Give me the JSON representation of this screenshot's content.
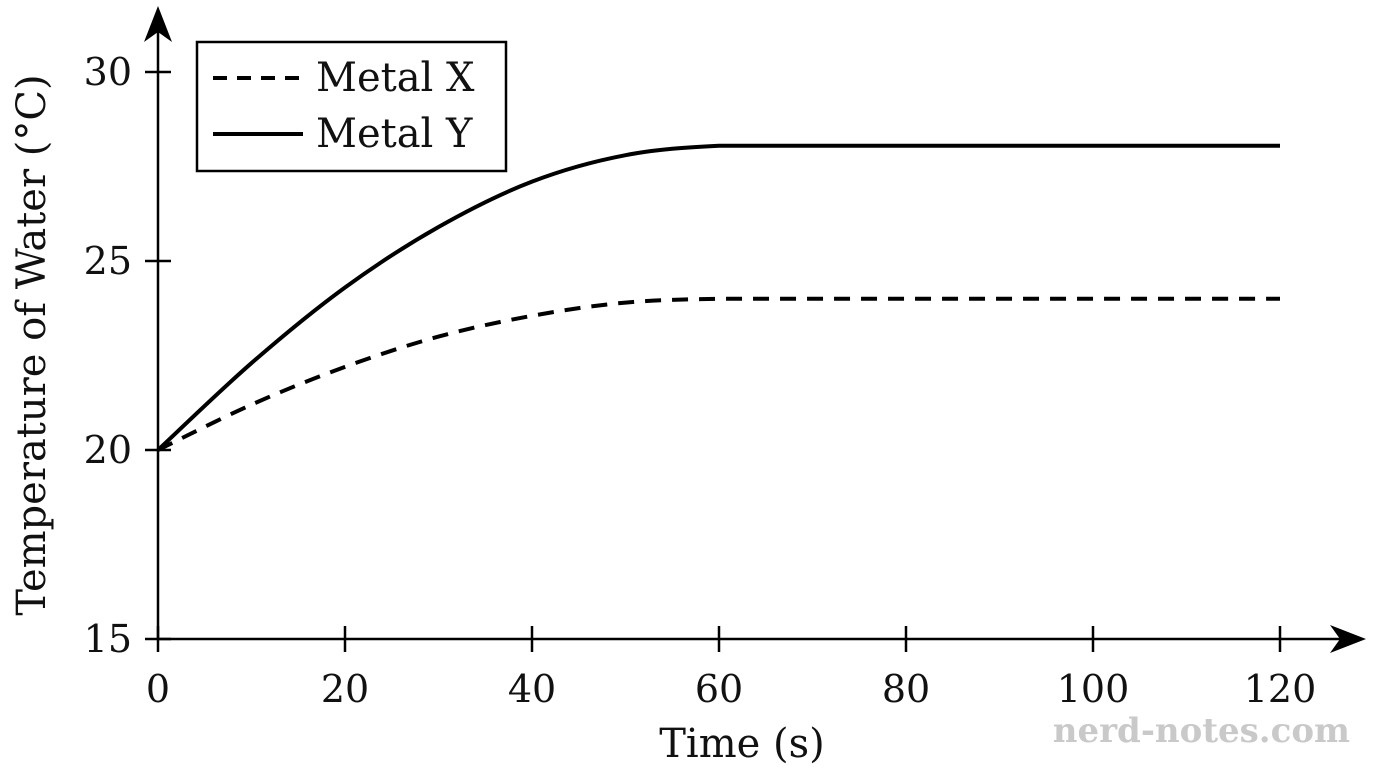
{
  "chart_data": {
    "type": "line",
    "xlabel": "Time (s)",
    "ylabel": "Temperature of Water (°C)",
    "xlim": [
      0,
      120
    ],
    "ylim": [
      15,
      30
    ],
    "xticks": [
      0,
      20,
      40,
      60,
      80,
      100,
      120
    ],
    "yticks": [
      15,
      20,
      25,
      30
    ],
    "grid": false,
    "legend_position": "top-left",
    "series": [
      {
        "name": "Metal X",
        "style": "dashed",
        "color": "#000000",
        "x": [
          0,
          10,
          20,
          30,
          40,
          50,
          60,
          70,
          80,
          90,
          100,
          110,
          120
        ],
        "y": [
          20,
          21.2,
          22.2,
          23.0,
          23.55,
          23.9,
          24.0,
          24.0,
          24.0,
          24.0,
          24.0,
          24.0,
          24.0
        ]
      },
      {
        "name": "Metal Y",
        "style": "solid",
        "color": "#000000",
        "x": [
          0,
          10,
          20,
          30,
          40,
          50,
          60,
          70,
          80,
          90,
          100,
          110,
          120
        ],
        "y": [
          20,
          22.3,
          24.3,
          25.9,
          27.1,
          27.8,
          28.05,
          28.05,
          28.05,
          28.05,
          28.05,
          28.05,
          28.05
        ]
      }
    ]
  },
  "watermark": "nerd-notes.com"
}
